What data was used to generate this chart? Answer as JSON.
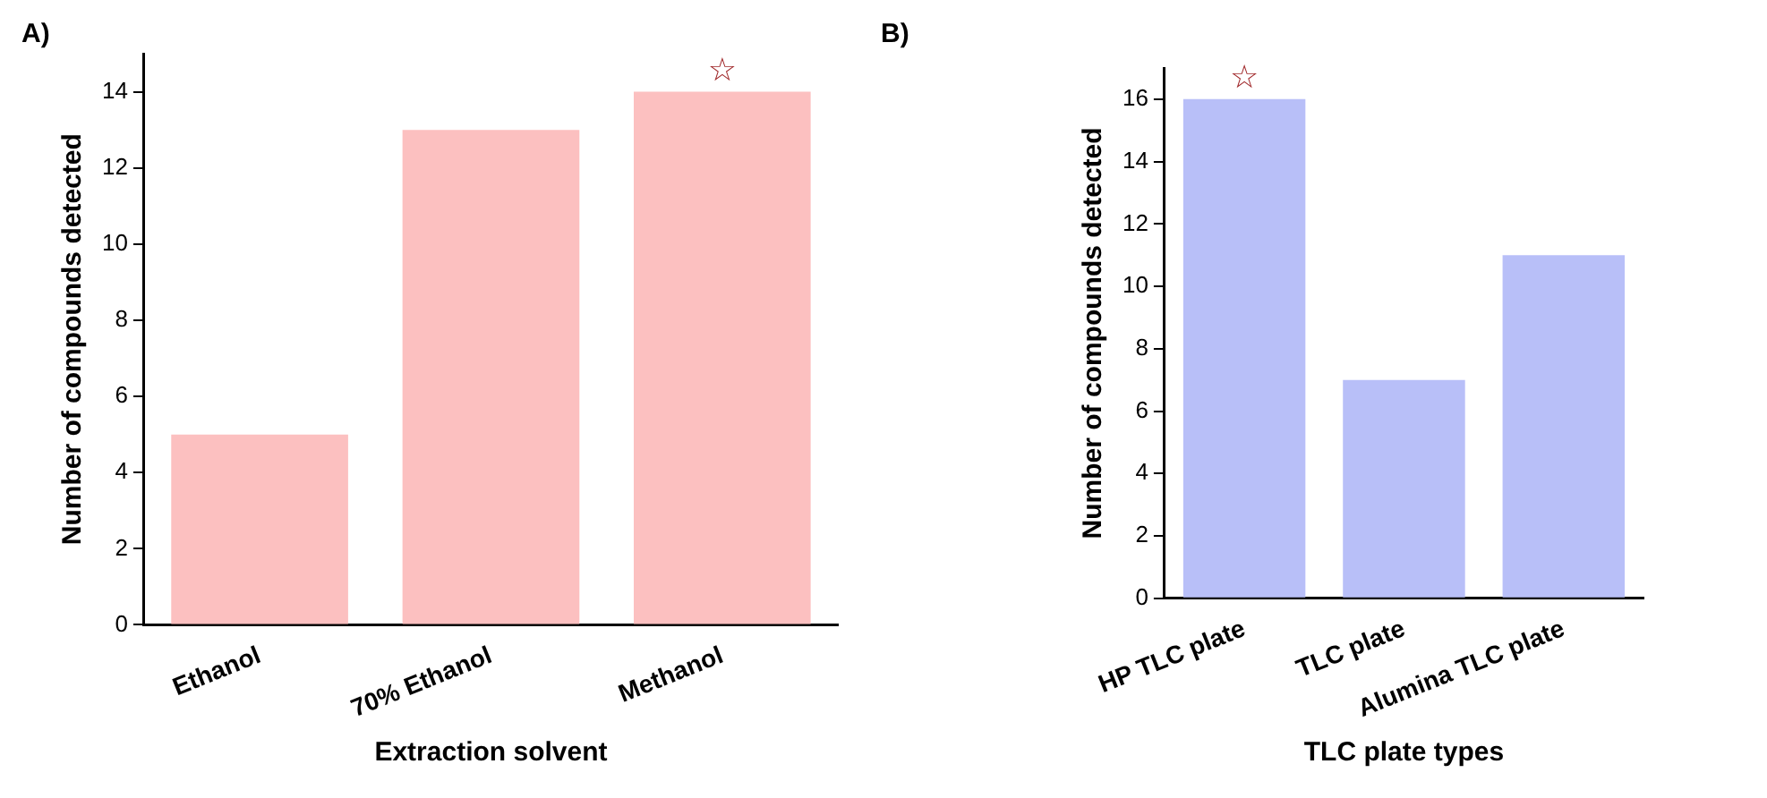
{
  "chart_data": [
    {
      "type": "bar",
      "xlabel": "Extraction solvent",
      "ylabel": "Number of compounds detected",
      "categories": [
        "Ethanol",
        "70% Ethanol",
        "Methanol"
      ],
      "values": [
        5,
        13,
        14
      ],
      "color": "#fcc0c0",
      "ylim": [
        0,
        15
      ],
      "yticks": [
        0,
        2,
        4,
        6,
        8,
        10,
        12,
        14
      ],
      "grid": false,
      "legend": false,
      "annotations": [
        "A)",
        {
          "text": "☆",
          "x": "Methanol",
          "y": 14
        }
      ]
    },
    {
      "type": "bar",
      "xlabel": "TLC plate types",
      "ylabel": "Number of compounds detected",
      "categories": [
        "HP TLC plate",
        "TLC plate",
        "Alumina TLC plate"
      ],
      "values": [
        16,
        7,
        11
      ],
      "color": "#b8bff8",
      "ylim": [
        0,
        17
      ],
      "yticks": [
        0,
        2,
        4,
        6,
        8,
        10,
        12,
        14,
        16
      ],
      "grid": false,
      "legend": false,
      "annotations": [
        "B)",
        {
          "text": "☆",
          "x": "HP TLC plate",
          "y": 16
        }
      ]
    }
  ]
}
